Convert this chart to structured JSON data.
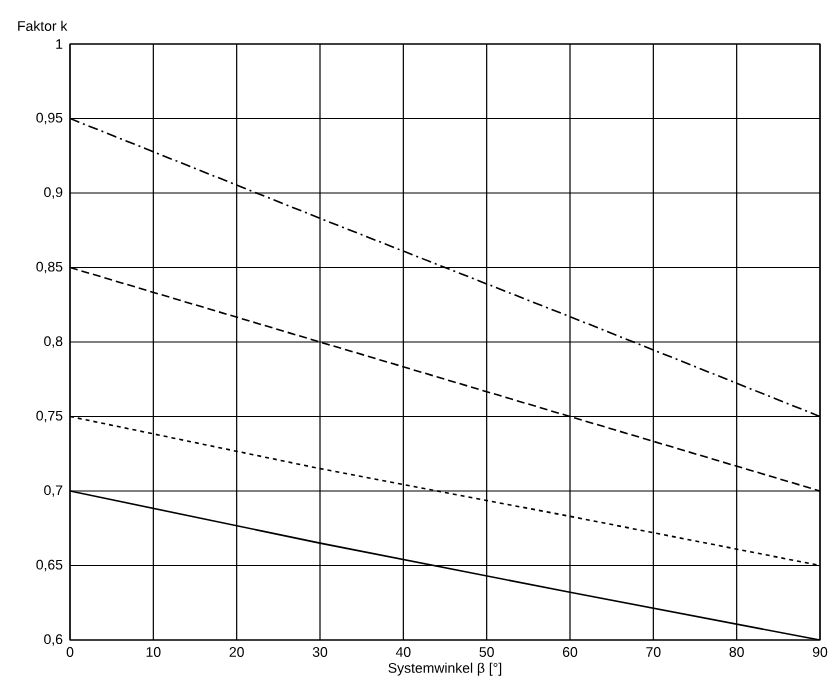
{
  "chart_data": {
    "type": "line",
    "xlabel": "Systemwinkel β [°]",
    "ylabel": "Faktor k",
    "x": [
      0,
      30,
      60,
      90
    ],
    "series": [
      {
        "color": "#000000",
        "line_style": "dashdot",
        "values": [
          0.95,
          0.883,
          0.817,
          0.75
        ]
      },
      {
        "color": "#000000",
        "line_style": "dashed",
        "values": [
          0.85,
          0.8,
          0.75,
          0.7
        ]
      },
      {
        "color": "#000000",
        "line_style": "dotted",
        "values": [
          0.75,
          0.715,
          0.683,
          0.65
        ]
      },
      {
        "color": "#000000",
        "line_style": "solid",
        "values": [
          0.7,
          0.665,
          0.632,
          0.6
        ]
      }
    ],
    "xlim": [
      0,
      90
    ],
    "ylim": [
      0.6,
      1
    ],
    "xticks": [
      0,
      10,
      20,
      30,
      40,
      50,
      60,
      70,
      80,
      90
    ],
    "yticks": [
      {
        "value": 0.6,
        "label": "0,6"
      },
      {
        "value": 0.65,
        "label": "0,65"
      },
      {
        "value": 0.7,
        "label": "0,7"
      },
      {
        "value": 0.75,
        "label": "0,75"
      },
      {
        "value": 0.8,
        "label": "0,8"
      },
      {
        "value": 0.85,
        "label": "0,85"
      },
      {
        "value": 0.9,
        "label": "0,9"
      },
      {
        "value": 0.95,
        "label": "0,95"
      },
      1
    ],
    "grid": true,
    "marker": "none"
  }
}
